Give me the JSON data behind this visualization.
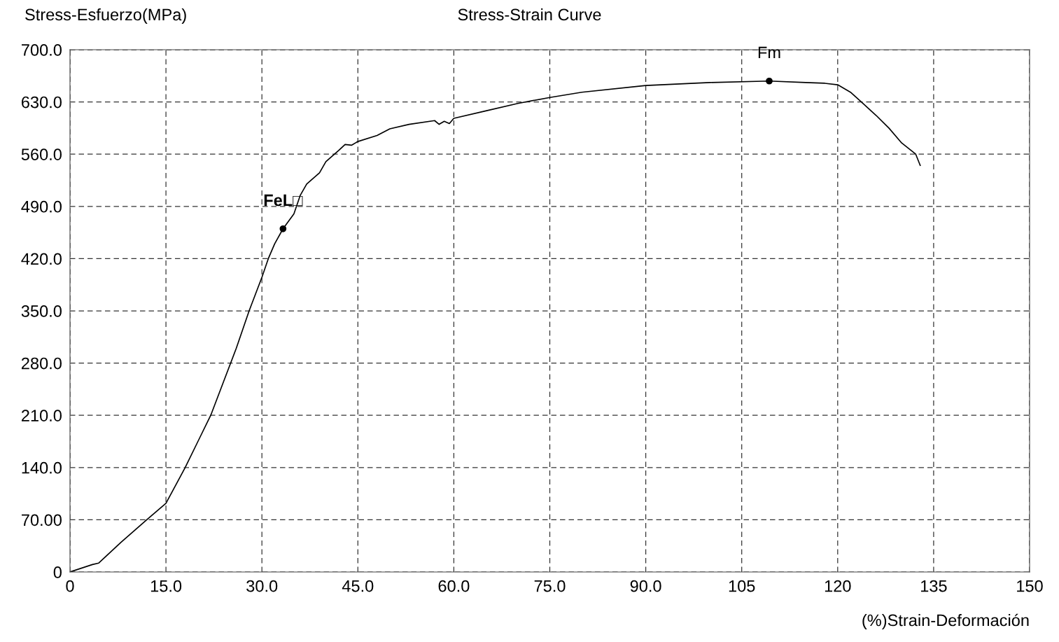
{
  "chart_data": {
    "type": "line",
    "title": "Stress-Strain Curve",
    "xlabel": "(%)Strain-Deformación",
    "ylabel": "Stress-Esfuerzo(MPa)",
    "xlim": [
      0,
      150
    ],
    "ylim": [
      0,
      700
    ],
    "xticks": [
      0,
      {
        "value": 15,
        "label": "15.0"
      },
      {
        "value": 30,
        "label": "30.0"
      },
      {
        "value": 45,
        "label": "45.0"
      },
      {
        "value": 60,
        "label": "60.0"
      },
      {
        "value": 75,
        "label": "75.0"
      },
      {
        "value": 90,
        "label": "90.0"
      },
      105,
      120,
      135,
      150
    ],
    "yticks": [
      0,
      {
        "value": 70,
        "label": "70.00"
      },
      {
        "value": 140,
        "label": "140.0"
      },
      {
        "value": 210,
        "label": "210.0"
      },
      {
        "value": 280,
        "label": "280.0"
      },
      {
        "value": 350,
        "label": "350.0"
      },
      {
        "value": 420,
        "label": "420.0"
      },
      {
        "value": 490,
        "label": "490.0"
      },
      {
        "value": 560,
        "label": "560.0"
      },
      {
        "value": 630,
        "label": "630.0"
      },
      {
        "value": 700,
        "label": "700.0"
      }
    ],
    "grid": true,
    "legend": false,
    "marker": "none",
    "line_style": "solid",
    "series": [
      {
        "color": "#000000",
        "x": [
          0,
          3.5,
          4.5,
          8,
          12,
          15,
          18,
          20,
          22,
          24,
          26,
          28,
          30,
          31,
          32,
          33.3,
          35,
          36,
          37,
          39,
          40,
          42,
          43,
          44,
          45,
          48,
          50,
          53,
          57,
          57.7,
          58.5,
          59.3,
          60,
          65,
          70,
          75,
          80,
          90,
          100,
          109.3,
          115,
          118,
          120,
          122,
          123.7,
          126,
          128,
          130,
          132.2,
          132.9
        ],
        "values": [
          0,
          10,
          12,
          40,
          70,
          92,
          140,
          175,
          210,
          255,
          300,
          350,
          395,
          420,
          440,
          460,
          480,
          505,
          520,
          535,
          550,
          565,
          573,
          572,
          577,
          585,
          594,
          600,
          605,
          600,
          604,
          601,
          608,
          618,
          628,
          636,
          643,
          652,
          656,
          658,
          656,
          655,
          653,
          643,
          630,
          612,
          595,
          575,
          560,
          545
        ]
      }
    ],
    "annotations": [
      {
        "text": "FeL□",
        "x": 33.3,
        "y": 460
      },
      {
        "text": "Fm",
        "x": 109.3,
        "y": 658
      }
    ]
  }
}
